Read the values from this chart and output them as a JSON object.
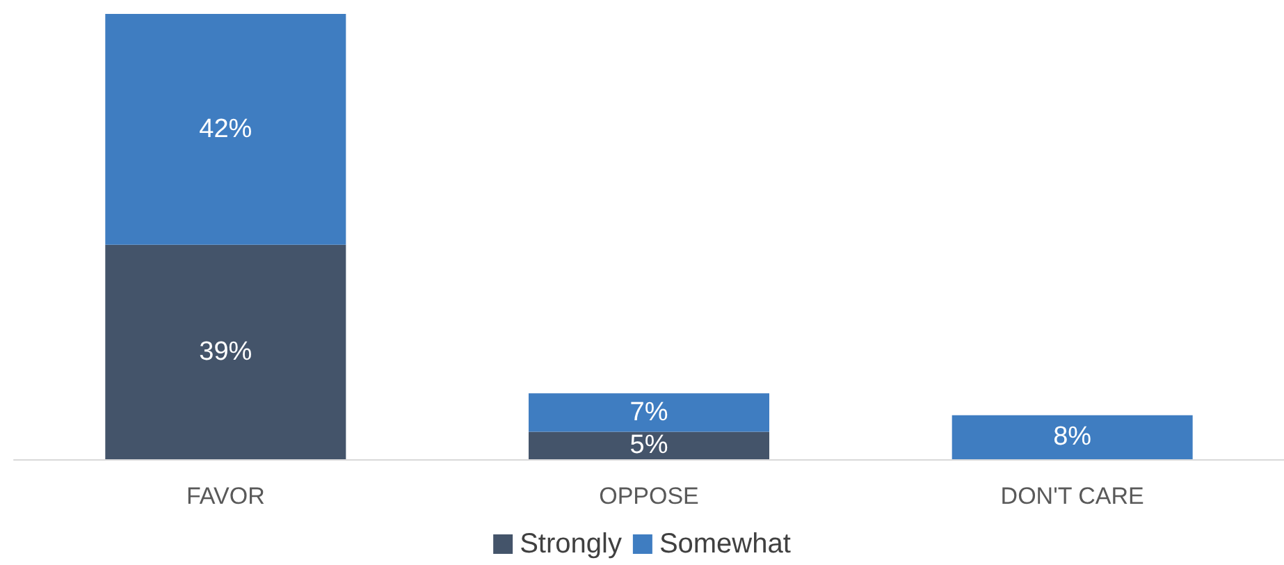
{
  "chart_data": {
    "type": "bar",
    "stacked": true,
    "categories": [
      "FAVOR",
      "OPPOSE",
      "DON'T CARE"
    ],
    "ylim": [
      0,
      81
    ],
    "legend": "bottom",
    "grid": false,
    "series": [
      {
        "name": "Strongly",
        "color": "#44546a",
        "values": [
          39,
          5,
          null
        ],
        "value_labels": [
          "39%",
          "5%",
          null
        ]
      },
      {
        "name": "Somewhat",
        "color": "#3f7dc1",
        "values": [
          42,
          7,
          8
        ],
        "value_labels": [
          "42%",
          "7%",
          "8%"
        ]
      }
    ]
  }
}
